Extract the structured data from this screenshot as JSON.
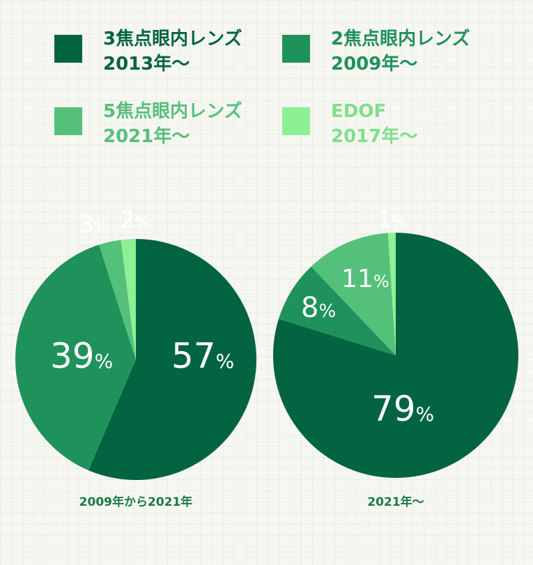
{
  "legend": [
    {
      "name_line1": "3焦点眼内レンズ",
      "name_line2": "2013年〜",
      "color": "#026440"
    },
    {
      "name_line1": "2焦点眼内レンズ",
      "name_line2": "2009年〜",
      "color": "#1f925b"
    },
    {
      "name_line1": "5焦点眼内レンズ",
      "name_line2": "2021年〜",
      "color": "#55c07a"
    },
    {
      "name_line1": "EDOF",
      "name_line2": "2017年〜",
      "color": "#8ef094"
    }
  ],
  "chart_data": [
    {
      "type": "pie",
      "caption": "2009年から2021年",
      "slices": [
        {
          "series": "3焦点眼内レンズ",
          "value": 57,
          "label": "57",
          "unit": "%",
          "color": "#026440"
        },
        {
          "series": "2焦点眼内レンズ",
          "value": 39,
          "label": "39",
          "unit": "%",
          "color": "#1f925b"
        },
        {
          "series": "5焦点眼内レンズ",
          "value": 3,
          "label": "3",
          "unit": "%",
          "color": "#55c07a"
        },
        {
          "series": "EDOF",
          "value": 2,
          "label": "2",
          "unit": "%",
          "color": "#8ef094"
        }
      ]
    },
    {
      "type": "pie",
      "caption": "2021年〜",
      "slices": [
        {
          "series": "3焦点眼内レンズ",
          "value": 79,
          "label": "79",
          "unit": "%",
          "color": "#026440"
        },
        {
          "series": "2焦点眼内レンズ",
          "value": 8,
          "label": "8",
          "unit": "%",
          "color": "#1f925b"
        },
        {
          "series": "5焦点眼内レンズ",
          "value": 11,
          "label": "11",
          "unit": "%",
          "color": "#55c07a"
        },
        {
          "series": "EDOF",
          "value": 1,
          "label": "1",
          "unit": "%",
          "color": "#8ef094"
        }
      ]
    }
  ]
}
